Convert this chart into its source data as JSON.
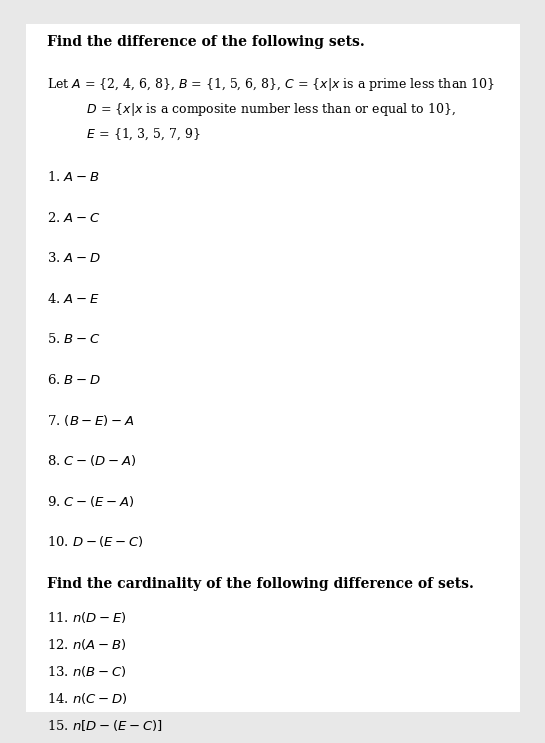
{
  "bg_color": "#e8e8e8",
  "paper_color": "#ffffff",
  "title_bold": "Find the difference of the following sets.",
  "intro_line1": "Let $A$ = {2, 4, 6, 8}, $B$ = {1, 5, 6, 8}, $C$ = {$x$|$x$ is a prime less than 10}",
  "intro_line2": "          $D$ = {$x$|$x$ is a composite number less than or equal to 10},",
  "intro_line3": "          $E$ = {1, 3, 5, 7, 9}",
  "items": [
    "1. $A - B$",
    "2. $A - C$",
    "3. $A - D$",
    "4. $A - E$",
    "5. $B - C$",
    "6. $B - D$",
    "7. $(B - E) - A$",
    "8. $C - (D - A)$",
    "9. $C - (E - A)$",
    "10. $D - (E - C)$"
  ],
  "title2_bold": "Find the cardinality of the following difference of sets.",
  "items2": [
    "11. $n(D - E)$",
    "12. $n(A - B)$",
    "13. $n(B - C)$",
    "14. $n(C - D)$",
    "15. $n[D - (E - C)]$"
  ],
  "font_size_title": 10.0,
  "font_size_intro": 9.0,
  "font_size_item": 9.5,
  "text_color": "#000000"
}
